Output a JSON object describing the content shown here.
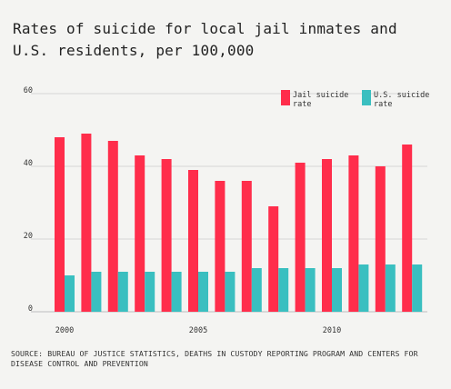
{
  "title": "Rates of suicide for local jail inmates and U.S. residents, per 100,000",
  "source": "SOURCE: BUREAU OF JUSTICE STATISTICS, DEATHS IN CUSTODY REPORTING PROGRAM AND CENTERS FOR DISEASE CONTROL AND PREVENTION",
  "colors": {
    "jail": "#ff2d4b",
    "us": "#3abfc0",
    "grid": "#d6d6d6",
    "background": "#f4f4f2"
  },
  "chart_data": {
    "type": "bar",
    "title": "Rates of suicide for local jail inmates and U.S. residents, per 100,000",
    "categories": [
      "2000",
      "2001",
      "2002",
      "2003",
      "2004",
      "2005",
      "2006",
      "2007",
      "2008",
      "2009",
      "2010",
      "2011",
      "2012",
      "2013"
    ],
    "x_tick_labels": [
      "2000",
      "2005",
      "2010"
    ],
    "series": [
      {
        "name": "Jail suicide rate",
        "legend_lines": [
          "Jail suicide",
          "rate"
        ],
        "color": "#ff2d4b",
        "values": [
          48,
          49,
          47,
          43,
          42,
          39,
          36,
          36,
          29,
          41,
          42,
          43,
          40,
          46
        ]
      },
      {
        "name": "U.S. suicide rate",
        "legend_lines": [
          "U.S. suicide",
          "rate"
        ],
        "color": "#3abfc0",
        "values": [
          10,
          11,
          11,
          11,
          11,
          11,
          11,
          12,
          12,
          12,
          12,
          13,
          13,
          13
        ]
      }
    ],
    "y_ticks": [
      "0",
      "20",
      "40",
      "60"
    ],
    "ylim": [
      0,
      60
    ],
    "xlabel": "",
    "ylabel": "",
    "grid": true,
    "legend_position": "top-right"
  }
}
